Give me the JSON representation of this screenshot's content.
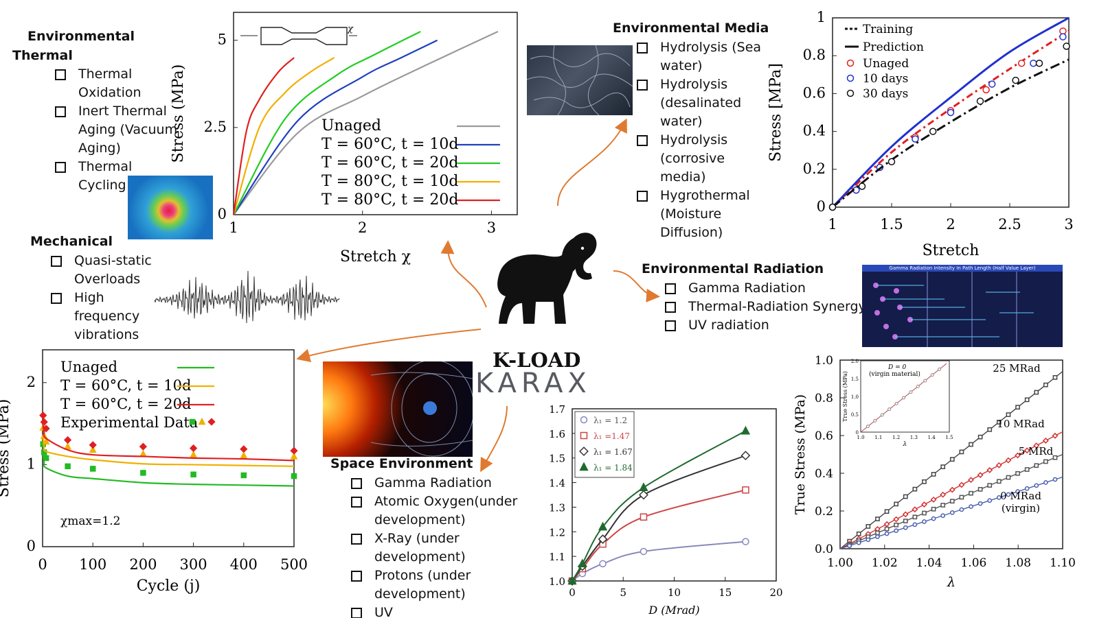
{
  "center": {
    "title": "K-LOAD",
    "brand": "KARAX",
    "mascot": "elephant-icon"
  },
  "thermal": {
    "heading_line1": "Environmental",
    "heading_line2": "Thermal",
    "items": [
      "Thermal Oxidation",
      "Inert Thermal Aging (Vacuum Aging)",
      "Thermal Cycling"
    ]
  },
  "mechanical": {
    "heading": "Mechanical",
    "items": [
      "Quasi-static Overloads",
      "High frequency vibrations"
    ]
  },
  "media": {
    "heading": "Environmental Media",
    "items": [
      "Hydrolysis (Sea water)",
      "Hydrolysis (desalinated water)",
      "Hydrolysis (corrosive media)",
      "Hygrothermal (Moisture Diffusion)"
    ]
  },
  "radiation": {
    "heading": "Environmental Radiation",
    "items": [
      "Gamma Radiation",
      "Thermal-Radiation Synergy",
      "UV radiation"
    ]
  },
  "space": {
    "heading": "Space Environment",
    "items": [
      "Gamma Radiation",
      "Atomic Oxygen(under development)",
      "X-Ray (under development)",
      "Protons (under development)",
      "UV"
    ]
  },
  "radiation_image": {
    "banner": "Gamma Radiation Intensity In Path Length (Half Value Layer)"
  },
  "chart_data": [
    {
      "type": "line",
      "xlabel": "Stretch χ",
      "ylabel": "Stress (MPa)",
      "xlim": [
        1,
        3.2
      ],
      "ylim": [
        0,
        5.8
      ],
      "x_ticks": [
        "1",
        "2",
        "3"
      ],
      "y_ticks": [
        "0",
        "2.5",
        "5"
      ],
      "inset_label": "χ",
      "series": [
        {
          "name": "Unaged",
          "color": "#9a9a9a",
          "x": [
            1,
            1.5,
            2,
            2.5,
            3.05
          ],
          "y": [
            0,
            2.35,
            3.4,
            4.3,
            5.25
          ]
        },
        {
          "name": "T = 60°C, t = 10d",
          "color": "#1f3fbf",
          "x": [
            1,
            1.5,
            2,
            2.3,
            2.58
          ],
          "y": [
            0,
            2.7,
            3.95,
            4.5,
            5.0
          ]
        },
        {
          "name": "T = 60°C, t = 20d",
          "color": "#22cc22",
          "x": [
            1,
            1.4,
            1.8,
            2.1,
            2.45
          ],
          "y": [
            0,
            2.75,
            4.0,
            4.6,
            5.25
          ]
        },
        {
          "name": "T = 80°C, t = 10d",
          "color": "#f0b000",
          "x": [
            1,
            1.2,
            1.4,
            1.6,
            1.78
          ],
          "y": [
            0,
            2.5,
            3.5,
            4.1,
            4.5
          ]
        },
        {
          "name": "T = 80°C, t = 20d",
          "color": "#e02020",
          "x": [
            1,
            1.1,
            1.2,
            1.35,
            1.47
          ],
          "y": [
            0,
            2.4,
            3.3,
            4.1,
            4.5
          ]
        }
      ]
    },
    {
      "type": "line",
      "xlabel": "Stretch",
      "ylabel": "Stress [MPa]",
      "xlim": [
        1,
        3
      ],
      "ylim": [
        0,
        1
      ],
      "x_ticks": [
        "1",
        "1.5",
        "2",
        "2.5",
        "3"
      ],
      "y_ticks": [
        "0",
        "0.2",
        "0.4",
        "0.6",
        "0.8",
        "1"
      ],
      "legend": [
        "Training",
        "Prediction",
        "Unaged",
        "10 days",
        "30 days"
      ],
      "series": [
        {
          "name": "Unaged",
          "color": "#e02020",
          "model": [
            [
              1,
              0
            ],
            [
              1.5,
              0.29
            ],
            [
              2,
              0.52
            ],
            [
              2.5,
              0.73
            ],
            [
              3,
              0.93
            ]
          ],
          "points": [
            [
              1,
              0
            ],
            [
              1.2,
              0.09
            ],
            [
              1.4,
              0.21
            ],
            [
              1.7,
              0.37
            ],
            [
              2,
              0.51
            ],
            [
              2.3,
              0.62
            ],
            [
              2.6,
              0.76
            ],
            [
              2.95,
              0.93
            ]
          ]
        },
        {
          "name": "10 days",
          "color": "#2030d0",
          "model": [
            [
              1,
              0
            ],
            [
              1.5,
              0.32
            ],
            [
              2,
              0.58
            ],
            [
              2.5,
              0.82
            ],
            [
              3,
              1.0
            ]
          ],
          "points": [
            [
              1,
              0
            ],
            [
              1.2,
              0.09
            ],
            [
              1.4,
              0.21
            ],
            [
              1.7,
              0.36
            ],
            [
              2,
              0.5
            ],
            [
              2.35,
              0.65
            ],
            [
              2.7,
              0.76
            ],
            [
              2.95,
              0.9
            ]
          ]
        },
        {
          "name": "30 days",
          "color": "#111111",
          "model": [
            [
              1,
              0
            ],
            [
              1.5,
              0.25
            ],
            [
              2,
              0.45
            ],
            [
              2.5,
              0.63
            ],
            [
              3,
              0.78
            ]
          ],
          "points": [
            [
              1,
              0
            ],
            [
              1.25,
              0.11
            ],
            [
              1.5,
              0.24
            ],
            [
              1.85,
              0.4
            ],
            [
              2.25,
              0.56
            ],
            [
              2.55,
              0.67
            ],
            [
              2.75,
              0.76
            ],
            [
              2.98,
              0.85
            ]
          ]
        }
      ]
    },
    {
      "type": "line",
      "xlabel": "Cycle (j)",
      "ylabel": "Stress (MPa)",
      "xlim": [
        0,
        500
      ],
      "ylim": [
        0,
        2.4
      ],
      "x_ticks": [
        "0",
        "100",
        "200",
        "300",
        "400",
        "500"
      ],
      "y_ticks": [
        "0",
        "1",
        "2"
      ],
      "annotation": "χmax=1.2",
      "legend": [
        "Unaged",
        "T = 60°C, t = 10d",
        "T = 60°C, t = 20d",
        "Experimental Data"
      ],
      "series": [
        {
          "name": "Unaged",
          "color": "#22bb22",
          "marker": "square",
          "x": [
            1,
            3,
            7,
            50,
            100,
            200,
            300,
            400,
            500
          ],
          "y": [
            1.25,
            1.15,
            1.08,
            0.98,
            0.95,
            0.9,
            0.88,
            0.87,
            0.86
          ]
        },
        {
          "name": "T = 60°C, t = 10d",
          "color": "#f0b000",
          "marker": "triangle",
          "x": [
            1,
            3,
            7,
            50,
            100,
            200,
            300,
            400,
            500
          ],
          "y": [
            1.45,
            1.35,
            1.28,
            1.22,
            1.18,
            1.13,
            1.12,
            1.11,
            1.1
          ]
        },
        {
          "name": "T = 60°C, t = 20d",
          "color": "#e02020",
          "marker": "diamond",
          "x": [
            1,
            3,
            7,
            50,
            100,
            200,
            300,
            400,
            500
          ],
          "y": [
            1.6,
            1.52,
            1.44,
            1.3,
            1.24,
            1.22,
            1.2,
            1.19,
            1.17
          ]
        }
      ]
    },
    {
      "type": "line",
      "xlabel": "D (Mrad)",
      "ylabel": "",
      "xlim": [
        0,
        20
      ],
      "ylim": [
        1.0,
        1.7
      ],
      "x_ticks": [
        "0",
        "5",
        "10",
        "15",
        "20"
      ],
      "y_ticks": [
        "1.0",
        "1.1",
        "1.2",
        "1.3",
        "1.4",
        "1.5",
        "1.6",
        "1.7"
      ],
      "series": [
        {
          "name": "λ₁ = 1.2",
          "color": "#8888bb",
          "marker": "circle",
          "x": [
            0,
            1,
            3,
            7,
            17
          ],
          "y": [
            1.0,
            1.03,
            1.07,
            1.12,
            1.16
          ]
        },
        {
          "name": "λ₁ =1.47",
          "color": "#cc4444",
          "marker": "square",
          "x": [
            0,
            1,
            3,
            7,
            17
          ],
          "y": [
            1.0,
            1.05,
            1.15,
            1.26,
            1.37
          ]
        },
        {
          "name": "λ₁ = 1.67",
          "color": "#333333",
          "marker": "diamond",
          "x": [
            0,
            1,
            3,
            7,
            17
          ],
          "y": [
            1.0,
            1.06,
            1.17,
            1.35,
            1.51
          ]
        },
        {
          "name": "λ₁ = 1.84",
          "color": "#1f6b2f",
          "marker": "triangle",
          "x": [
            0,
            1,
            3,
            7,
            17
          ],
          "y": [
            1.0,
            1.07,
            1.22,
            1.38,
            1.61
          ]
        }
      ]
    },
    {
      "type": "scatter",
      "xlabel": "λ",
      "ylabel": "True Stress (MPa)",
      "xlim": [
        1.0,
        1.1
      ],
      "ylim": [
        0,
        1.0
      ],
      "x_ticks": [
        "1.00",
        "1.02",
        "1.04",
        "1.06",
        "1.08",
        "1.10"
      ],
      "y_ticks": [
        "0.0",
        "0.2",
        "0.4",
        "0.6",
        "0.8",
        "1.0"
      ],
      "series": [
        {
          "name": "25 MRad",
          "color": "#444444",
          "marker": "square",
          "slope": 9.4
        },
        {
          "name": "10 MRad",
          "color": "#d33333",
          "marker": "diamond",
          "slope": 6.2
        },
        {
          "name": "5 MRd",
          "color": "#555555",
          "marker": "square",
          "slope": 5.0
        },
        {
          "name": "0 MRad (virgin)",
          "color": "#4a5fb0",
          "marker": "circle",
          "slope": 3.8
        }
      ],
      "inset": {
        "title": "D = 0",
        "subtitle": "(virgin material)",
        "xlabel": "λ",
        "ylabel": "True Stress (MPa)",
        "x_ticks": [
          "1.0",
          "1.1",
          "1.2",
          "1.3",
          "1.4",
          "1.5"
        ],
        "y_ticks": [
          "0",
          "0.5",
          "1.0",
          "1.5",
          "2.0"
        ]
      }
    }
  ]
}
